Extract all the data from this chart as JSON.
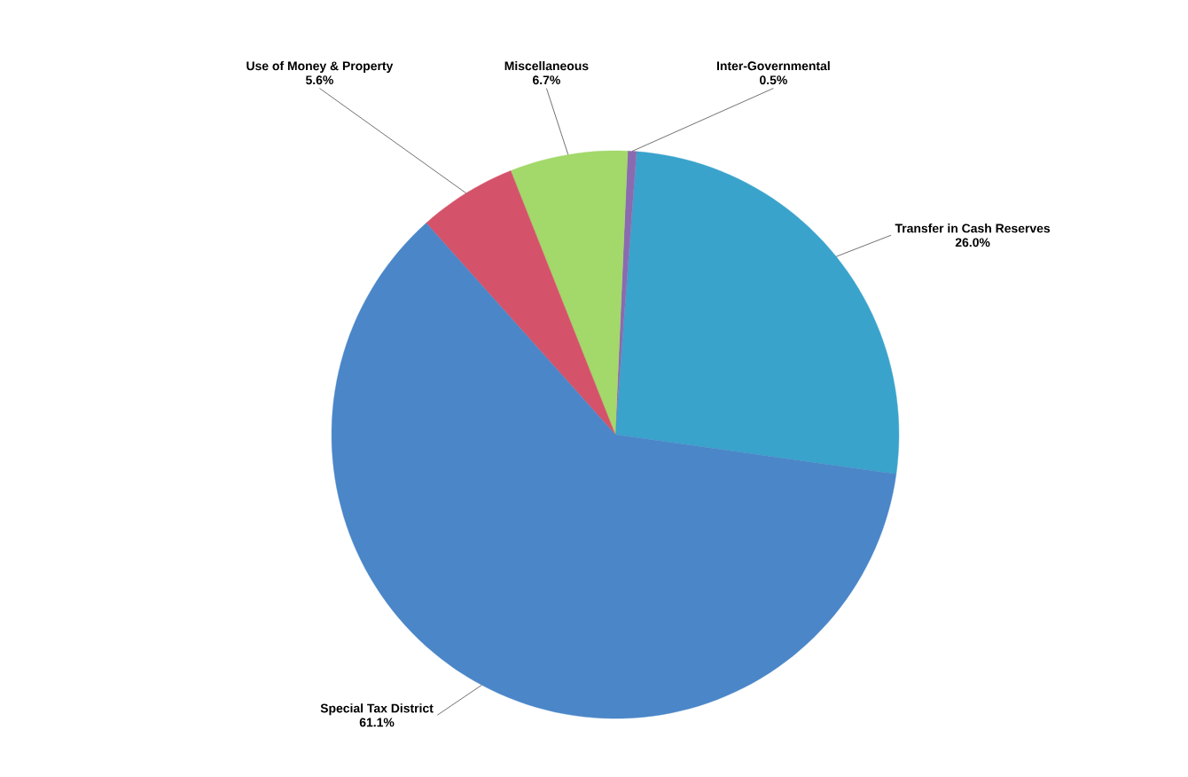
{
  "chart_data": {
    "type": "pie",
    "categories": [
      "Transfer in Cash Reserves",
      "Inter-Governmental",
      "Miscellaneous",
      "Use of Money & Property",
      "Special Tax District"
    ],
    "values": [
      26.0,
      0.5,
      6.7,
      5.6,
      61.1
    ],
    "value_labels": [
      "26.0%",
      "0.5%",
      "6.7%",
      "5.6%",
      "61.1%"
    ],
    "colors": [
      "#3aa3cc",
      "#8a6bb0",
      "#a3d86a",
      "#d4536a",
      "#4a86c8"
    ]
  }
}
